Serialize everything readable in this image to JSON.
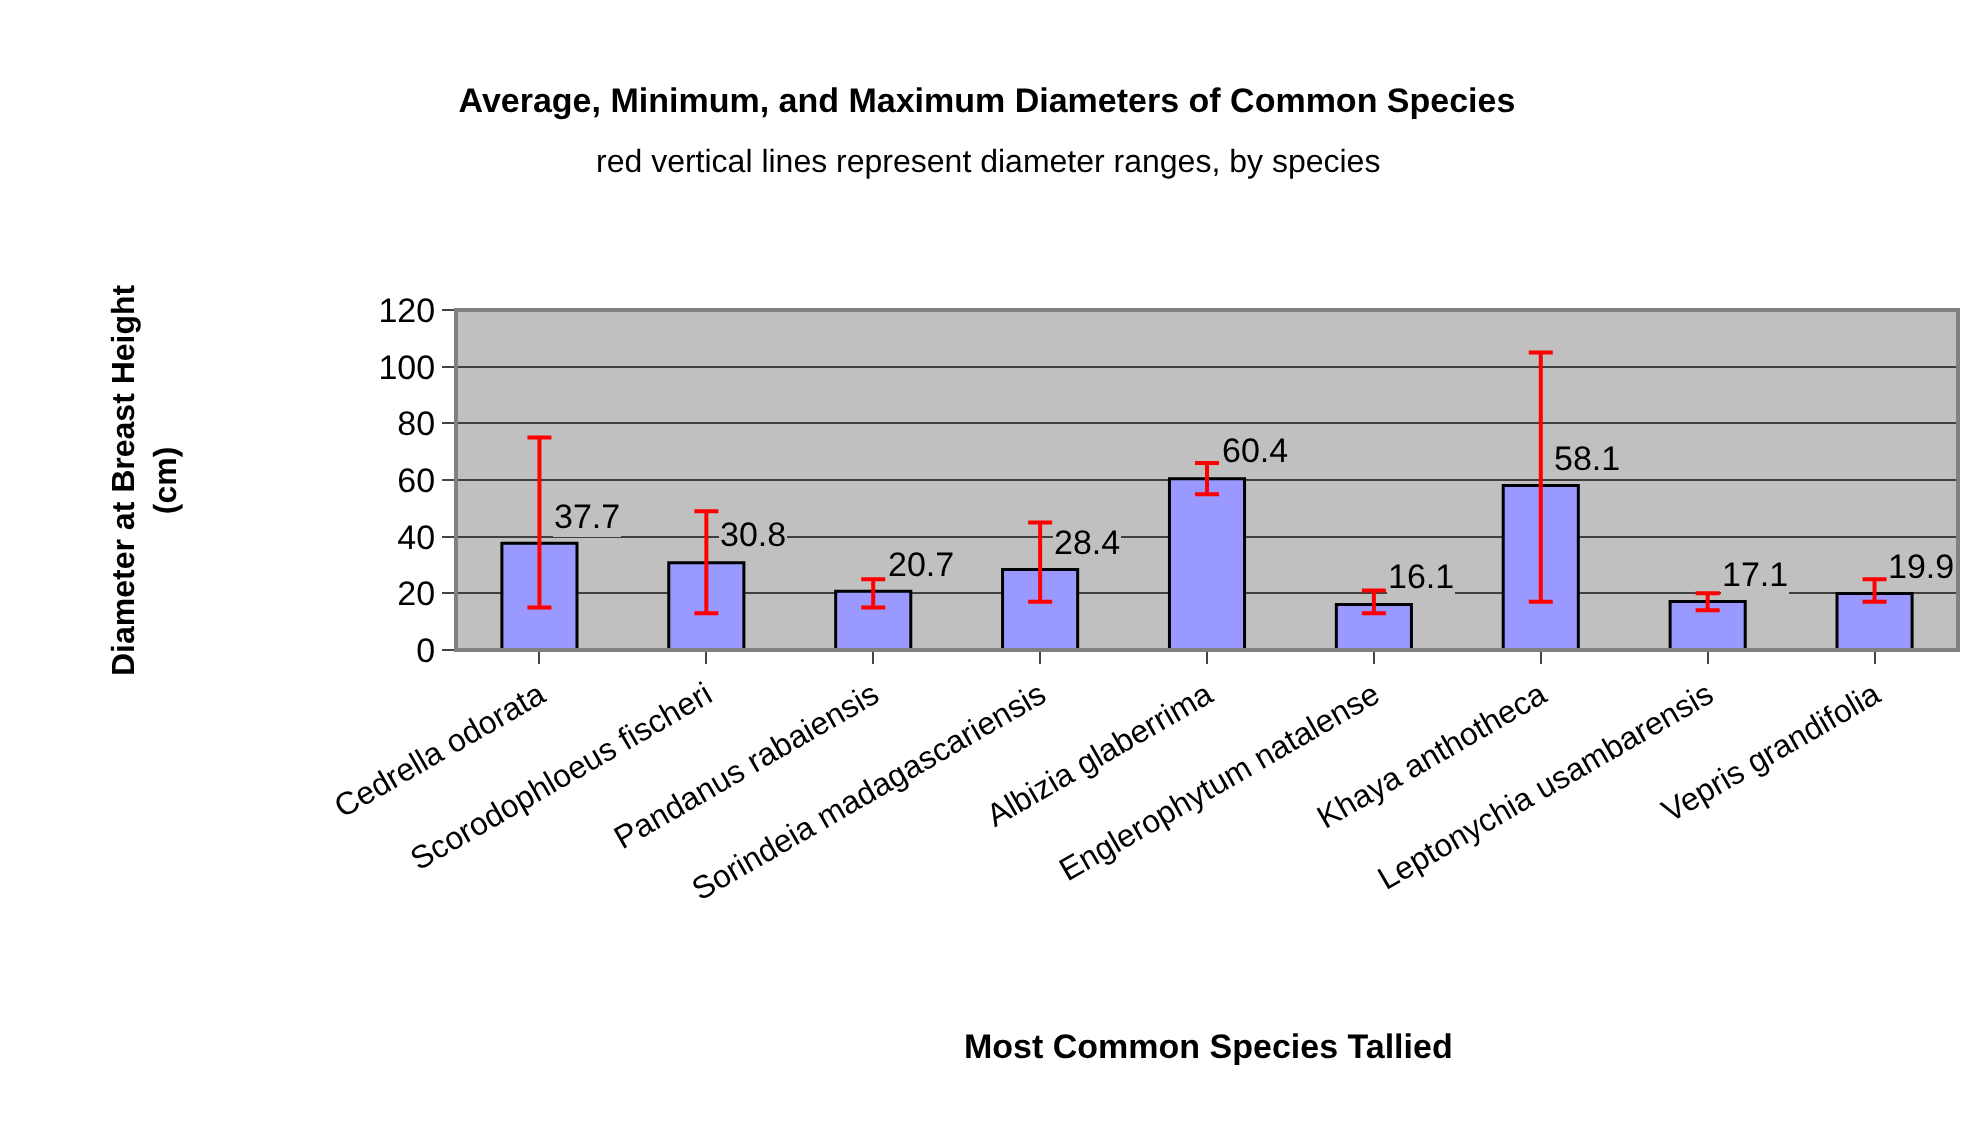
{
  "chart_data": {
    "type": "bar",
    "title": "Average, Minimum, and Maximum Diameters of Common Species",
    "subtitle": "red vertical lines represent diameter ranges, by species",
    "xlabel": "Most Common Species Tallied",
    "ylabel": "Diameter at Breast Height\n(cm)",
    "categories": [
      "Cedrella odorata",
      "Scorodophloeus fischeri",
      "Pandanus rabaiensis",
      "Sorindeia madagascariensis",
      "Albizia glaberrima",
      "Englerophytum natalense",
      "Khaya anthotheca",
      "Leptonychia usambarensis",
      "Vepris grandifolia"
    ],
    "series": [
      {
        "color": "#9999ff",
        "values": [
          37.7,
          30.8,
          20.7,
          28.4,
          60.4,
          16.1,
          58.1,
          17.1,
          19.9
        ],
        "errors": [
          [
            15,
            75
          ],
          [
            13,
            49
          ],
          [
            15,
            25
          ],
          [
            17,
            45
          ],
          [
            55,
            66
          ],
          [
            13,
            21
          ],
          [
            17,
            105
          ],
          [
            14,
            20
          ],
          [
            17,
            25
          ]
        ]
      }
    ],
    "ylim": [
      0,
      120
    ],
    "yticks": [
      0,
      20,
      40,
      60,
      80,
      100,
      120
    ],
    "grid": "y",
    "data_labels": true
  }
}
